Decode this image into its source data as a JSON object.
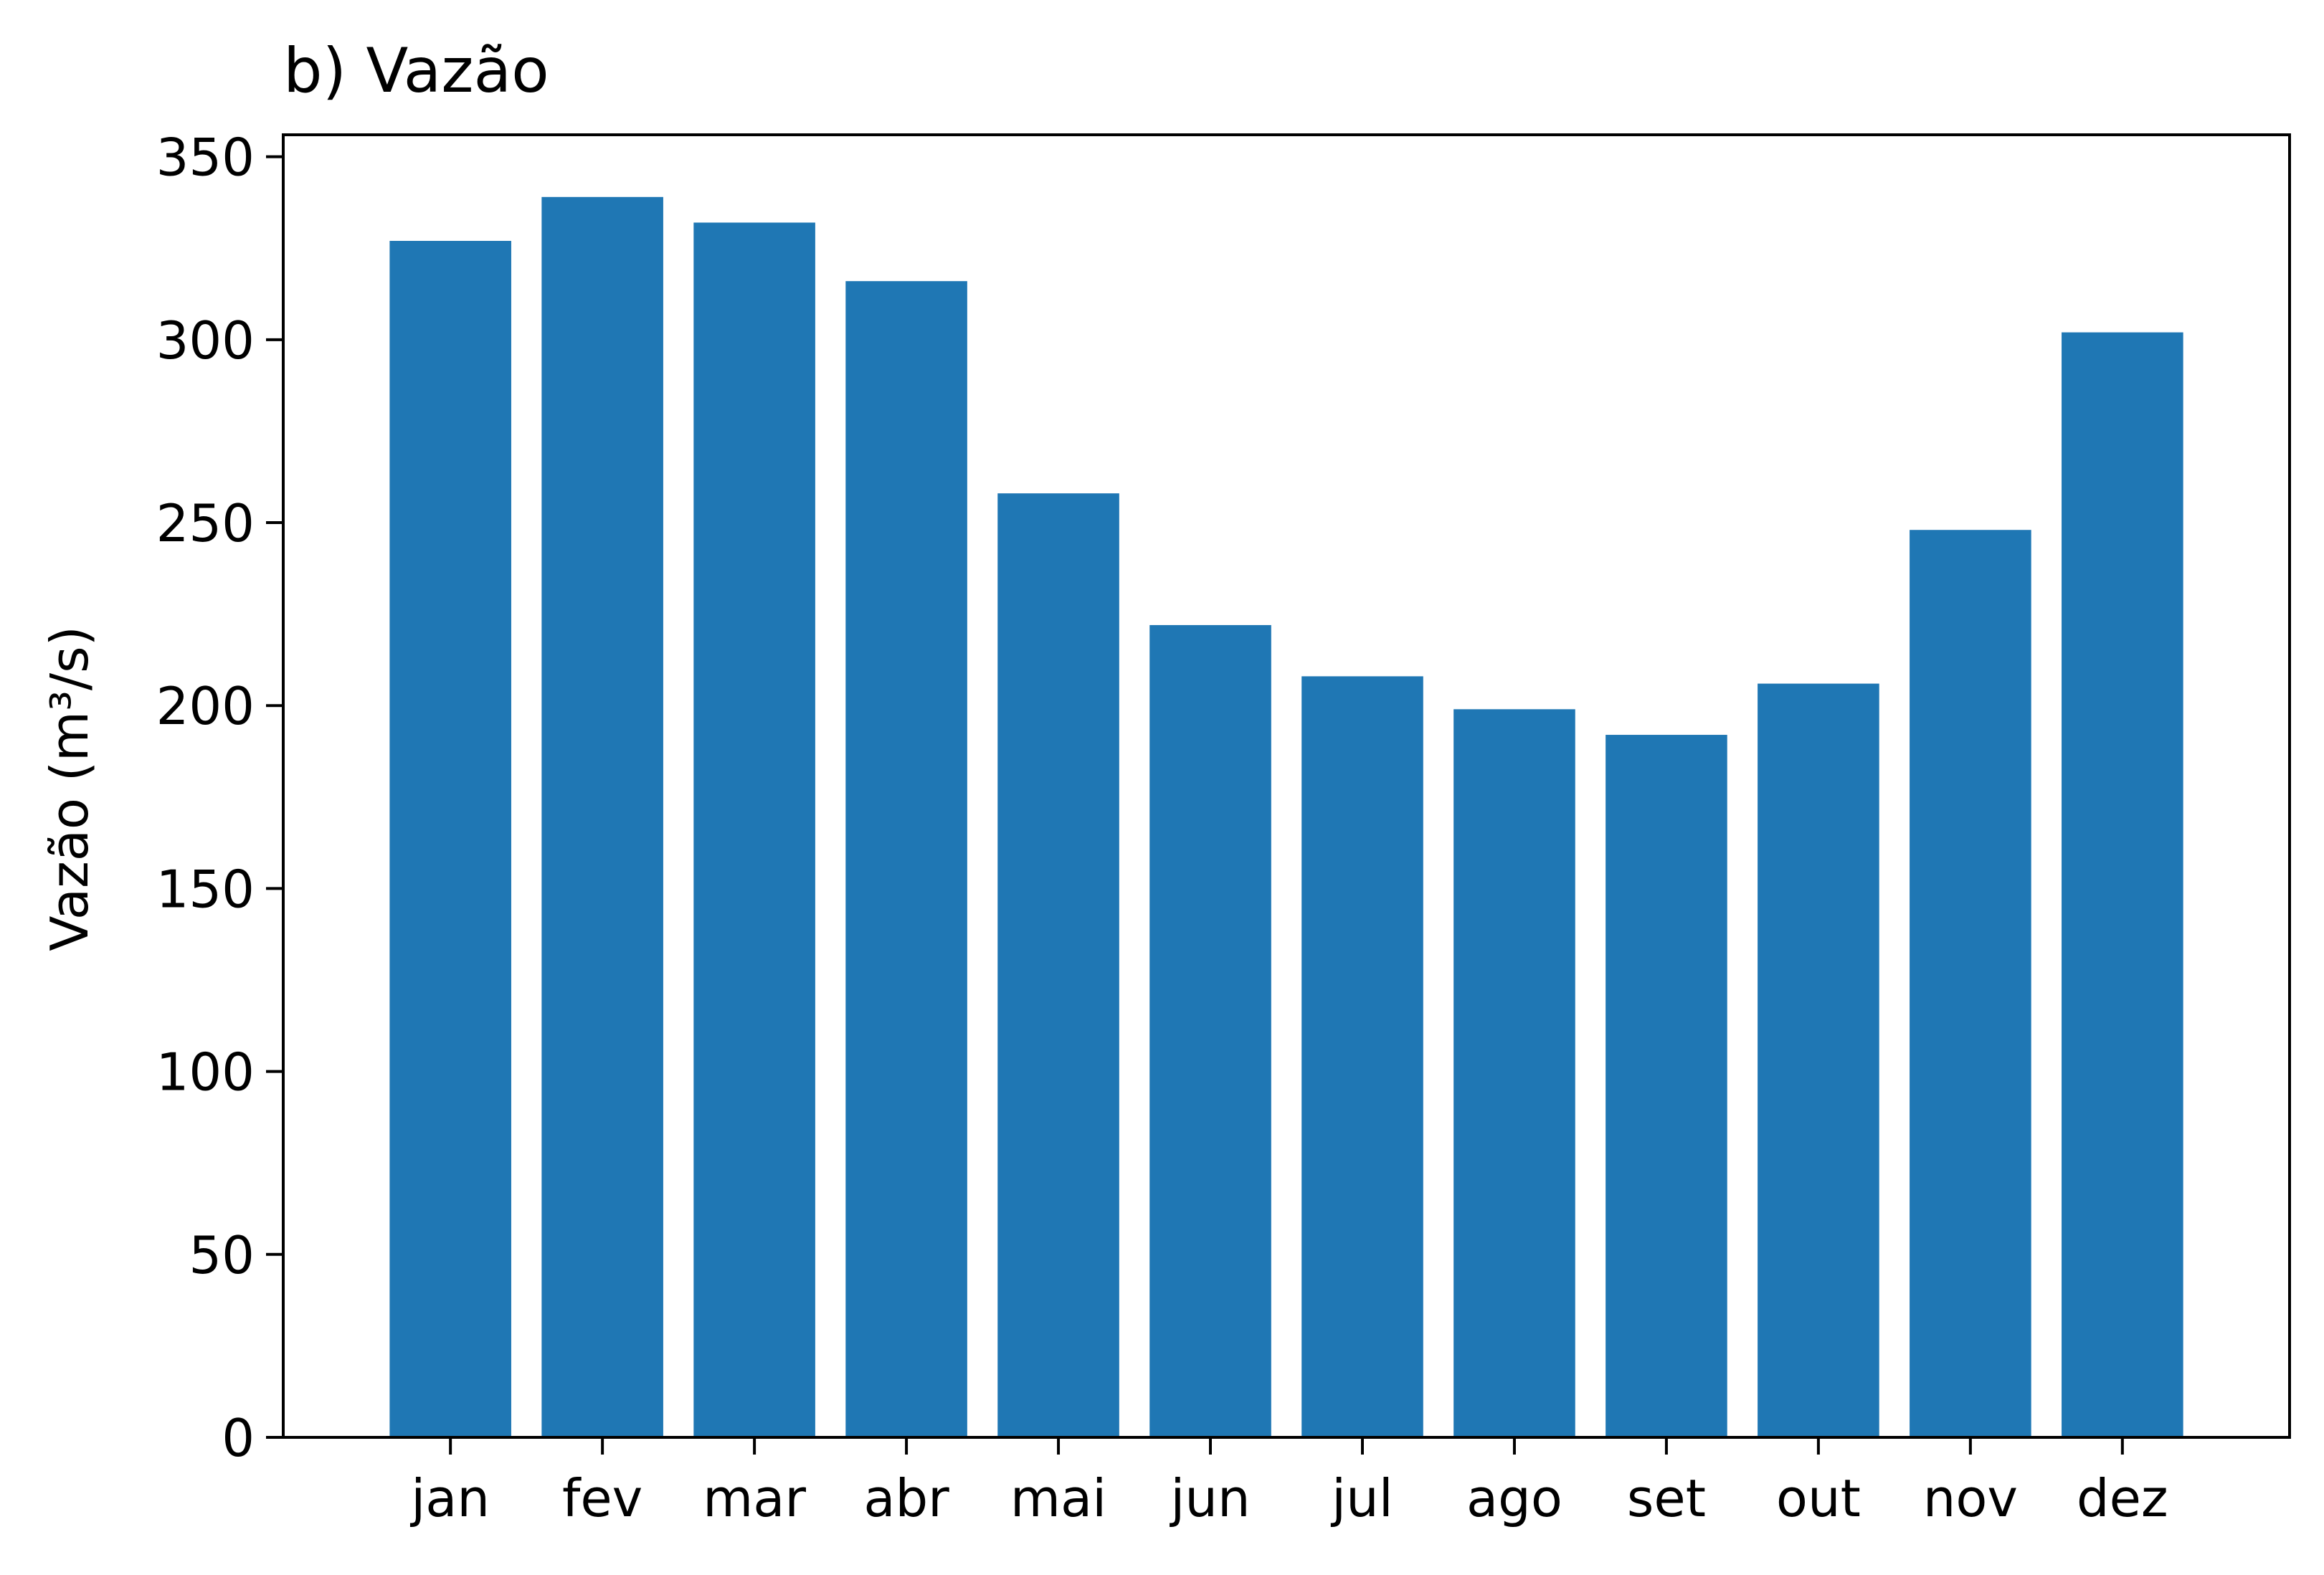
{
  "chart_data": {
    "type": "bar",
    "title": "b) Vazão",
    "ylabel": "Vazão (m³/s)",
    "xlabel": "",
    "categories": [
      "jan",
      "fev",
      "mar",
      "abr",
      "mai",
      "jun",
      "jul",
      "ago",
      "set",
      "out",
      "nov",
      "dez"
    ],
    "values": [
      327,
      339,
      332,
      316,
      258,
      222,
      208,
      199,
      192,
      206,
      248,
      302
    ],
    "ylim": [
      0,
      356
    ],
    "yticks": [
      0,
      50,
      100,
      150,
      200,
      250,
      300,
      350
    ],
    "grid": false,
    "bar_color": "#1f77b4"
  }
}
